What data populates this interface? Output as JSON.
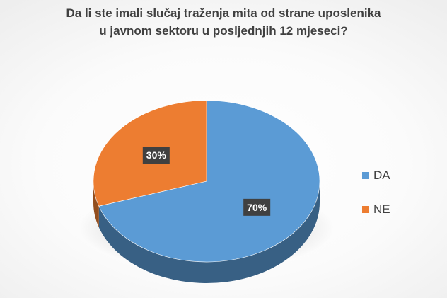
{
  "chart_data": {
    "type": "pie",
    "title_lines": [
      "Da li ste imali slučaj traženja mita od strane uposlenika",
      "u javnom sektoru u posljednjih 12 mjeseci?"
    ],
    "categories": [
      "DA",
      "NE"
    ],
    "values": [
      70,
      30
    ],
    "data_labels": [
      "70%",
      "30%"
    ],
    "colors": [
      "#5b9bd5",
      "#ed7d31"
    ],
    "style": "3d",
    "legend_position": "right"
  }
}
